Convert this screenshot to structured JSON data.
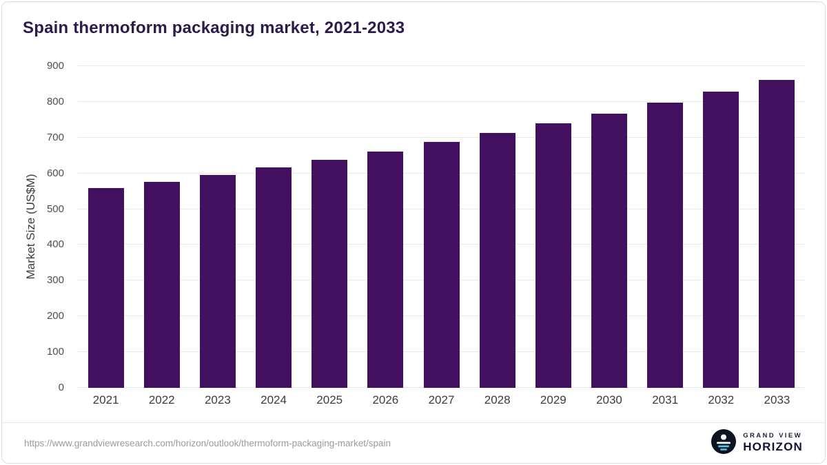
{
  "header": {
    "title": "Spain thermoform packaging market, 2021-2033"
  },
  "chart_data": {
    "type": "bar",
    "title": "Spain thermoform packaging market, 2021-2033",
    "categories": [
      "2021",
      "2022",
      "2023",
      "2024",
      "2025",
      "2026",
      "2027",
      "2028",
      "2029",
      "2030",
      "2031",
      "2032",
      "2033"
    ],
    "values": [
      558,
      576,
      596,
      617,
      638,
      662,
      688,
      713,
      740,
      767,
      797,
      828,
      861
    ],
    "xlabel": "",
    "ylabel": "Market Size (US$M)",
    "ylim": [
      0,
      900
    ],
    "ytick_step": 100,
    "grid": true,
    "legend": "none",
    "bar_color": "#42105F"
  },
  "footer": {
    "source_url": "https://www.grandviewresearch.com/horizon/outlook/thermoform-packaging-market/spain",
    "brand": {
      "line1": "GRAND VIEW",
      "line2": "HORIZON"
    }
  },
  "colors": {
    "title": "#2c1a4d",
    "gridline": "#e8e8e8",
    "axis_text": "#3c3c3c",
    "source_text": "#9b9b9b",
    "logo_circle": "#0b1423",
    "logo_accent": "#59c2ea"
  }
}
